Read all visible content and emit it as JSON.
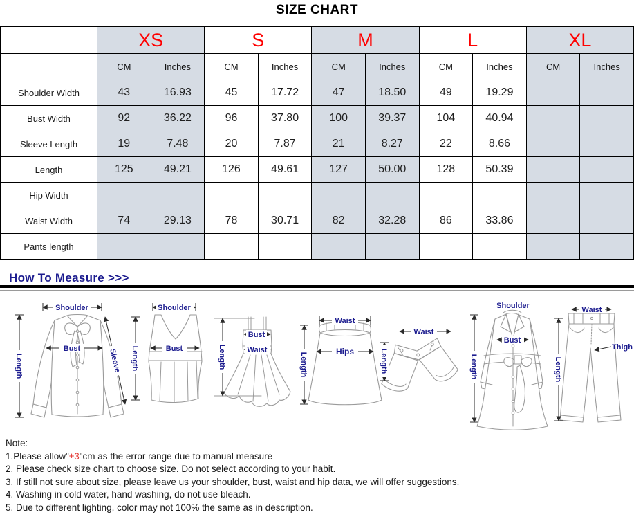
{
  "title": "SIZE CHART",
  "table": {
    "corner": "",
    "unit_headers": [
      "CM",
      "Inches"
    ],
    "sizes": [
      {
        "label": "XS",
        "shaded": true
      },
      {
        "label": "S",
        "shaded": false
      },
      {
        "label": "M",
        "shaded": true
      },
      {
        "label": "L",
        "shaded": false
      },
      {
        "label": "XL",
        "shaded": true
      }
    ],
    "rows": [
      {
        "label": "Shoulder Width",
        "values": [
          "43",
          "16.93",
          "45",
          "17.72",
          "47",
          "18.50",
          "49",
          "19.29",
          "",
          ""
        ]
      },
      {
        "label": "Bust Width",
        "values": [
          "92",
          "36.22",
          "96",
          "37.80",
          "100",
          "39.37",
          "104",
          "40.94",
          "",
          ""
        ]
      },
      {
        "label": "Sleeve Length",
        "values": [
          "19",
          "7.48",
          "20",
          "7.87",
          "21",
          "8.27",
          "22",
          "8.66",
          "",
          ""
        ]
      },
      {
        "label": "Length",
        "values": [
          "125",
          "49.21",
          "126",
          "49.61",
          "127",
          "50.00",
          "128",
          "50.39",
          "",
          ""
        ]
      },
      {
        "label": "Hip Width",
        "values": [
          "",
          "",
          "",
          "",
          "",
          "",
          "",
          "",
          "",
          ""
        ]
      },
      {
        "label": "Waist Width",
        "values": [
          "74",
          "29.13",
          "78",
          "30.71",
          "82",
          "32.28",
          "86",
          "33.86",
          "",
          ""
        ]
      },
      {
        "label": "Pants length",
        "values": [
          "",
          "",
          "",
          "",
          "",
          "",
          "",
          "",
          "",
          ""
        ]
      }
    ]
  },
  "how_to_measure": {
    "heading": "How To Measure >>>"
  },
  "figures": [
    {
      "id": "blouse",
      "labels": {
        "shoulder": "Shoulder",
        "bust": "Bust",
        "sleeve": "Sleeve",
        "length": "Length"
      }
    },
    {
      "id": "tank-top",
      "labels": {
        "shoulder": "Shoulder",
        "bust": "Bust",
        "length": "Length"
      }
    },
    {
      "id": "dress",
      "labels": {
        "bust": "Bust",
        "waist": "Waist",
        "length": "Length"
      }
    },
    {
      "id": "skirt",
      "labels": {
        "waist": "Waist",
        "hips": "Hips",
        "length": "Length"
      }
    },
    {
      "id": "shorts",
      "labels": {
        "waist": "Waist",
        "length": "Length"
      }
    },
    {
      "id": "coat",
      "labels": {
        "shoulder": "Shoulder",
        "bust": "Bust",
        "length": "Length"
      }
    },
    {
      "id": "pants",
      "labels": {
        "waist": "Waist",
        "thigh": "Thigh",
        "length": "Length"
      }
    }
  ],
  "notes": {
    "heading": "Note:",
    "line1": {
      "prefix": "1.Please allow\"",
      "highlight": "±3",
      "suffix": "\"cm as the error range due to manual measure"
    },
    "lines": [
      "2. Please check size chart to choose size. Do not select according to your habit.",
      "3. If still not sure about size, please leave us your shoulder, bust, waist and hip data, we will offer suggestions.",
      "4. Washing in cold water, hand washing, do not use bleach.",
      "5. Due to different lighting, color may not 100% the same as in description."
    ]
  },
  "colors": {
    "shaded_cell": "#d6dce4",
    "size_label_red": "#ff0000",
    "navy": "#1c1c8f",
    "note_highlight_red": "#e53935",
    "table_border": "#000000"
  }
}
